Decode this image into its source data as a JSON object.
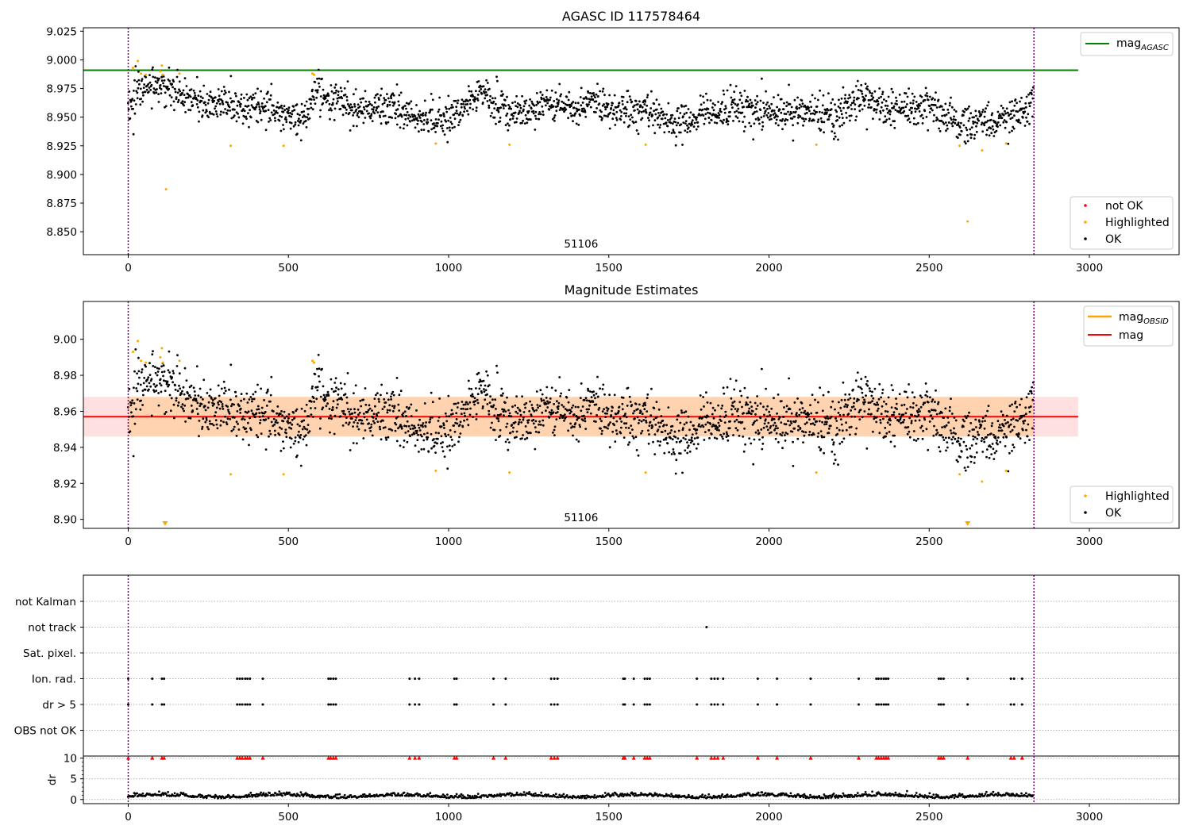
{
  "chart_data": [
    {
      "type": "scatter",
      "title": "AGASC ID 117578464",
      "xlim": [
        -140,
        3280
      ],
      "ylim": [
        8.83,
        9.028
      ],
      "xticks": [
        "0",
        "500",
        "1000",
        "1500",
        "2000",
        "2500",
        "3000"
      ],
      "yticks": [
        "8.850",
        "8.875",
        "8.900",
        "8.925",
        "8.950",
        "8.975",
        "9.000",
        "9.025"
      ],
      "obsid_label": "51106",
      "obsid_bounds": [
        0,
        2827
      ],
      "legend_upper": {
        "line_label": "mag",
        "line_subscript": "AGASC",
        "line_color": "#008000"
      },
      "legend_lower": [
        {
          "label": "not OK",
          "color": "#ff0000"
        },
        {
          "label": "Highlighted",
          "color": "#ffa500"
        },
        {
          "label": "OK",
          "color": "#000000"
        }
      ],
      "mag_agasc": 8.991,
      "mag_line_x": [
        -140,
        2965
      ],
      "ok_series": {
        "name": "OK",
        "n_points": 2100,
        "x_range": [
          0,
          2825
        ],
        "trend_x": [
          0,
          30,
          80,
          120,
          160,
          250,
          400,
          500,
          560,
          575,
          600,
          700,
          800,
          900,
          960,
          1000,
          1050,
          1100,
          1200,
          1300,
          1400,
          1450,
          1500,
          1600,
          1700,
          1750,
          1800,
          1900,
          2000,
          2100,
          2200,
          2300,
          2400,
          2500,
          2600,
          2700,
          2800,
          2825
        ],
        "trend_y": [
          8.955,
          8.975,
          8.978,
          8.976,
          8.968,
          8.962,
          8.96,
          8.952,
          8.948,
          8.975,
          8.97,
          8.957,
          8.96,
          8.95,
          8.946,
          8.95,
          8.962,
          8.97,
          8.952,
          8.96,
          8.958,
          8.965,
          8.958,
          8.955,
          8.947,
          8.945,
          8.955,
          8.958,
          8.952,
          8.955,
          8.952,
          8.968,
          8.955,
          8.96,
          8.947,
          8.946,
          8.955,
          8.968
        ],
        "noise": 0.008
      },
      "highlighted_points": [
        [
          15,
          8.993
        ],
        [
          30,
          8.999
        ],
        [
          40,
          8.988
        ],
        [
          55,
          8.987
        ],
        [
          105,
          8.995
        ],
        [
          100,
          8.99
        ],
        [
          108,
          8.987
        ],
        [
          160,
          8.988
        ],
        [
          118,
          8.887
        ],
        [
          320,
          8.925
        ],
        [
          485,
          8.925
        ],
        [
          575,
          8.988
        ],
        [
          580,
          8.987
        ],
        [
          960,
          8.927
        ],
        [
          1190,
          8.926
        ],
        [
          1615,
          8.926
        ],
        [
          2148,
          8.926
        ],
        [
          2595,
          8.925
        ],
        [
          2620,
          8.859
        ],
        [
          2665,
          8.921
        ],
        [
          2740,
          8.927
        ]
      ]
    },
    {
      "type": "scatter",
      "title": "Magnitude Estimates",
      "xlim": [
        -140,
        3280
      ],
      "ylim": [
        8.895,
        9.021
      ],
      "xticks": [
        "0",
        "500",
        "1000",
        "1500",
        "2000",
        "2500",
        "3000"
      ],
      "yticks": [
        "8.90",
        "8.92",
        "8.94",
        "8.96",
        "8.98",
        "9.00"
      ],
      "obsid_label": "51106",
      "obsid_bounds": [
        0,
        2827
      ],
      "legend_upper": [
        {
          "label": "mag",
          "subscript": "OBSID",
          "color": "#ffa500"
        },
        {
          "label": "mag",
          "subscript": "",
          "color": "#ff0000"
        }
      ],
      "legend_lower": [
        {
          "label": "Highlighted",
          "color": "#ffa500"
        },
        {
          "label": "OK",
          "color": "#000000"
        }
      ],
      "mag": 8.957,
      "mag_band": [
        8.946,
        8.968
      ],
      "mag_line_x": [
        -140,
        2965
      ],
      "obsid_band_x": [
        0,
        2827
      ],
      "off_scale_markers_x": [
        115,
        2620
      ]
    },
    {
      "type": "scatter",
      "title": "",
      "xlim": [
        -140,
        3280
      ],
      "xticks": [
        "0",
        "500",
        "1000",
        "1500",
        "2000",
        "2500",
        "3000"
      ],
      "flag_rows": [
        "not Kalman",
        "not track",
        "Sat. pixel.",
        "Ion. rad.",
        "dr > 5",
        "OBS not OK"
      ],
      "not_track_x": [
        1805
      ],
      "ion_rad_x": [
        0,
        75,
        105,
        112,
        340,
        348,
        356,
        365,
        372,
        380,
        420,
        625,
        632,
        640,
        648,
        878,
        895,
        908,
        1018,
        1025,
        1140,
        1178,
        1320,
        1330,
        1340,
        1545,
        1550,
        1578,
        1612,
        1620,
        1628,
        1775,
        1820,
        1830,
        1840,
        1857,
        1965,
        2025,
        2130,
        2280,
        2335,
        2342,
        2350,
        2358,
        2365,
        2372,
        2530,
        2537,
        2545,
        2620,
        2755,
        2765,
        2790
      ],
      "dr_panel": {
        "ylabel": "dr",
        "yticks": [
          "0",
          "5",
          "10"
        ],
        "ylim": [
          -1,
          10.5
        ],
        "threshold": 10,
        "dr_base": 0.6,
        "dr_noise": 0.5
      }
    }
  ]
}
